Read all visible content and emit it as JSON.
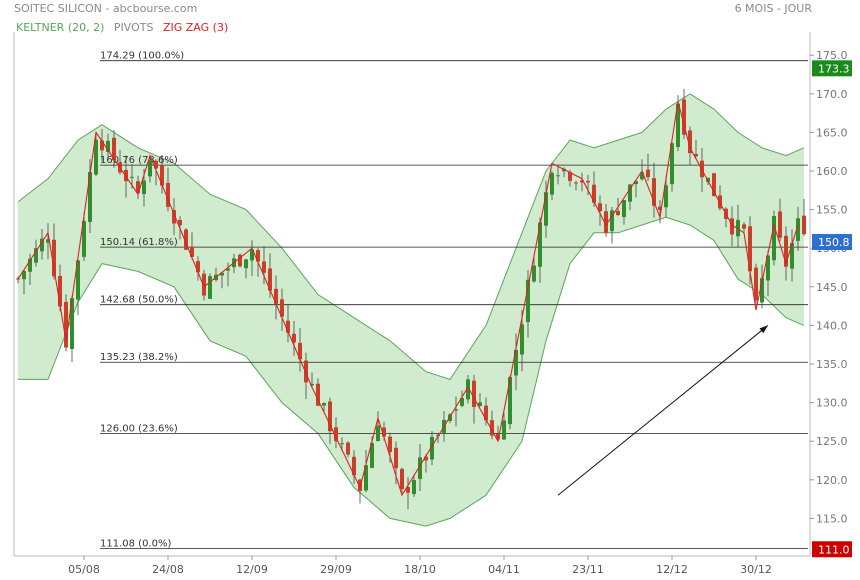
{
  "header": {
    "title": "SOITEC SILICON - abcbourse.com",
    "period": "6 MOIS - JOUR"
  },
  "legend": [
    {
      "label": "KELTNER (20, 2)",
      "color": "#5aa55a"
    },
    {
      "label": "PIVOTS",
      "color": "#8a8a8a"
    },
    {
      "label": "ZIG ZAG (3)",
      "color": "#e02020"
    }
  ],
  "colors": {
    "up": "#2f8f2f",
    "down": "#c8402a",
    "zigzag": "#e02020",
    "band_fill": "#c9e8c6",
    "band_line": "#5aa55a",
    "current_badge": "#2f6fcf",
    "high_badge": "#1a8a1a",
    "low_badge": "#cc0000"
  },
  "chart_data": {
    "type": "candlestick",
    "ylim": [
      110,
      176
    ],
    "yticks": [
      115,
      120,
      125,
      130,
      135,
      140,
      145,
      150,
      155,
      160,
      165,
      170,
      175
    ],
    "ytick_labels": [
      "115.0",
      "120.0",
      "125.0",
      "130.0",
      "135.0",
      "140.0",
      "145.0",
      "150.0",
      "155.0",
      "160.0",
      "165.0",
      "170.0",
      "175.0"
    ],
    "xtick_labels": [
      {
        "label": "05/08",
        "index": 11
      },
      {
        "label": "24/08",
        "index": 25
      },
      {
        "label": "12/09",
        "index": 39
      },
      {
        "label": "29/09",
        "index": 53
      },
      {
        "label": "18/10",
        "index": 67
      },
      {
        "label": "04/11",
        "index": 81
      },
      {
        "label": "23/11",
        "index": 95
      },
      {
        "label": "12/12",
        "index": 109
      },
      {
        "label": "30/12",
        "index": 123
      }
    ],
    "fib_levels": [
      {
        "value": 174.29,
        "label": "174.29  (100.0%)"
      },
      {
        "value": 160.76,
        "label": "160.76  (78.6%)"
      },
      {
        "value": 150.14,
        "label": "150.14  (61.8%)"
      },
      {
        "value": 142.68,
        "label": "142.68  (50.0%)"
      },
      {
        "value": 135.23,
        "label": "135.23  (38.2%)"
      },
      {
        "value": 126.0,
        "label": "126.00  (23.6%)"
      },
      {
        "value": 111.08,
        "label": "111.08  (0.0%)"
      }
    ],
    "badges": {
      "high": {
        "value": 173.3,
        "label": "173.3"
      },
      "current": {
        "value": 150.8,
        "label": "150.8"
      },
      "low": {
        "value": 111.0,
        "label": "111.0"
      }
    },
    "zigzag_turns": [
      {
        "i": 0,
        "v": 146
      },
      {
        "i": 5,
        "v": 152
      },
      {
        "i": 8,
        "v": 138
      },
      {
        "i": 13,
        "v": 165
      },
      {
        "i": 20,
        "v": 157
      },
      {
        "i": 22,
        "v": 162
      },
      {
        "i": 31,
        "v": 145
      },
      {
        "i": 39,
        "v": 150
      },
      {
        "i": 49,
        "v": 132
      },
      {
        "i": 57,
        "v": 119
      },
      {
        "i": 60,
        "v": 128
      },
      {
        "i": 64,
        "v": 118
      },
      {
        "i": 75,
        "v": 132
      },
      {
        "i": 80,
        "v": 125
      },
      {
        "i": 89,
        "v": 161
      },
      {
        "i": 94,
        "v": 159
      },
      {
        "i": 98,
        "v": 153
      },
      {
        "i": 104,
        "v": 160
      },
      {
        "i": 107,
        "v": 154
      },
      {
        "i": 110,
        "v": 169
      },
      {
        "i": 112,
        "v": 163
      },
      {
        "i": 119,
        "v": 153
      },
      {
        "i": 121,
        "v": 152
      },
      {
        "i": 123,
        "v": 142
      },
      {
        "i": 126,
        "v": 153
      },
      {
        "i": 128,
        "v": 148
      },
      {
        "i": 130,
        "v": 153
      }
    ],
    "keltner_upper": [
      {
        "i": 0,
        "v": 156
      },
      {
        "i": 5,
        "v": 159
      },
      {
        "i": 10,
        "v": 164
      },
      {
        "i": 14,
        "v": 166
      },
      {
        "i": 20,
        "v": 163
      },
      {
        "i": 26,
        "v": 161
      },
      {
        "i": 32,
        "v": 157
      },
      {
        "i": 38,
        "v": 155
      },
      {
        "i": 44,
        "v": 150
      },
      {
        "i": 50,
        "v": 144
      },
      {
        "i": 56,
        "v": 141
      },
      {
        "i": 62,
        "v": 138
      },
      {
        "i": 68,
        "v": 134
      },
      {
        "i": 72,
        "v": 133
      },
      {
        "i": 78,
        "v": 140
      },
      {
        "i": 84,
        "v": 152
      },
      {
        "i": 88,
        "v": 160
      },
      {
        "i": 92,
        "v": 164
      },
      {
        "i": 96,
        "v": 163
      },
      {
        "i": 100,
        "v": 164
      },
      {
        "i": 104,
        "v": 165
      },
      {
        "i": 108,
        "v": 168
      },
      {
        "i": 112,
        "v": 170
      },
      {
        "i": 116,
        "v": 168
      },
      {
        "i": 120,
        "v": 165
      },
      {
        "i": 124,
        "v": 163
      },
      {
        "i": 128,
        "v": 162
      },
      {
        "i": 131,
        "v": 163
      }
    ],
    "keltner_lower": [
      {
        "i": 0,
        "v": 133
      },
      {
        "i": 5,
        "v": 133
      },
      {
        "i": 10,
        "v": 143
      },
      {
        "i": 14,
        "v": 148
      },
      {
        "i": 20,
        "v": 147
      },
      {
        "i": 26,
        "v": 145
      },
      {
        "i": 32,
        "v": 138
      },
      {
        "i": 38,
        "v": 136
      },
      {
        "i": 44,
        "v": 130
      },
      {
        "i": 50,
        "v": 126
      },
      {
        "i": 56,
        "v": 119
      },
      {
        "i": 62,
        "v": 115
      },
      {
        "i": 68,
        "v": 114
      },
      {
        "i": 72,
        "v": 115
      },
      {
        "i": 78,
        "v": 118
      },
      {
        "i": 84,
        "v": 125
      },
      {
        "i": 88,
        "v": 138
      },
      {
        "i": 92,
        "v": 148
      },
      {
        "i": 96,
        "v": 152
      },
      {
        "i": 100,
        "v": 152
      },
      {
        "i": 104,
        "v": 153
      },
      {
        "i": 108,
        "v": 154
      },
      {
        "i": 112,
        "v": 153
      },
      {
        "i": 116,
        "v": 151
      },
      {
        "i": 120,
        "v": 146
      },
      {
        "i": 124,
        "v": 144
      },
      {
        "i": 128,
        "v": 141
      },
      {
        "i": 131,
        "v": 140
      }
    ],
    "candle_count": 132,
    "arrow": {
      "from": {
        "i": 90,
        "v": 118
      },
      "to": {
        "i": 125,
        "v": 140
      }
    }
  }
}
